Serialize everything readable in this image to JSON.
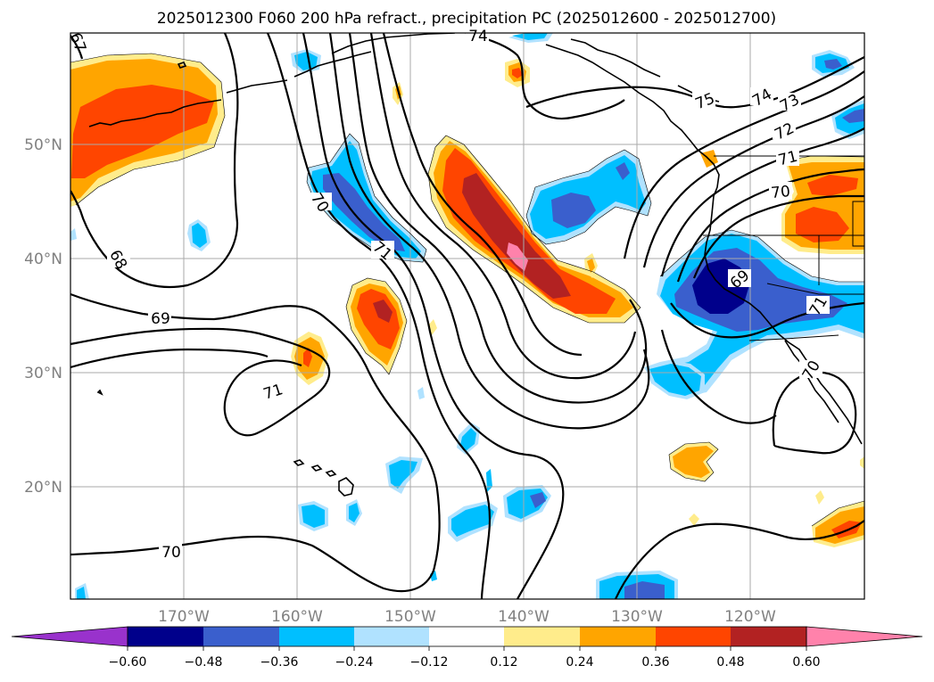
{
  "title": "2025012300 F060 200 hPa refract., precipitation PC (2025012600 - 2025012700)",
  "map": {
    "lat_labels": [
      "50°N",
      "40°N",
      "30°N",
      "20°N"
    ],
    "lon_labels": [
      "170°W",
      "160°W",
      "150°W",
      "140°W",
      "130°W",
      "120°W"
    ],
    "contour_labels": [
      "74",
      "75",
      "74",
      "73",
      "72",
      "71",
      "70",
      "70",
      "71",
      "68",
      "69",
      "71",
      "69",
      "71",
      "70",
      "70",
      "67"
    ]
  },
  "colorbar": {
    "tick_labels": [
      "−0.60",
      "−0.48",
      "−0.36",
      "−0.24",
      "−0.12",
      "0.12",
      "0.24",
      "0.36",
      "0.48",
      "0.60"
    ],
    "colors": [
      "#9932cc",
      "#00008b",
      "#3a5fcd",
      "#00bfff",
      "#b0e2ff",
      "#ffffff",
      "#ffec8b",
      "#ffa500",
      "#ff4500",
      "#b22222",
      "#ff82ab"
    ]
  },
  "colors": {
    "pc_neg_extreme": "#9932cc",
    "pc_neg_strong": "#00008b",
    "pc_neg_mid": "#3a5fcd",
    "pc_neg": "#00bfff",
    "pc_neg_weak": "#b0e2ff",
    "pc_pos_weak": "#ffec8b",
    "pc_pos": "#ffa500",
    "pc_pos_mid": "#ff4500",
    "pc_pos_strong": "#b22222",
    "pc_pos_extreme": "#ff82ab"
  }
}
